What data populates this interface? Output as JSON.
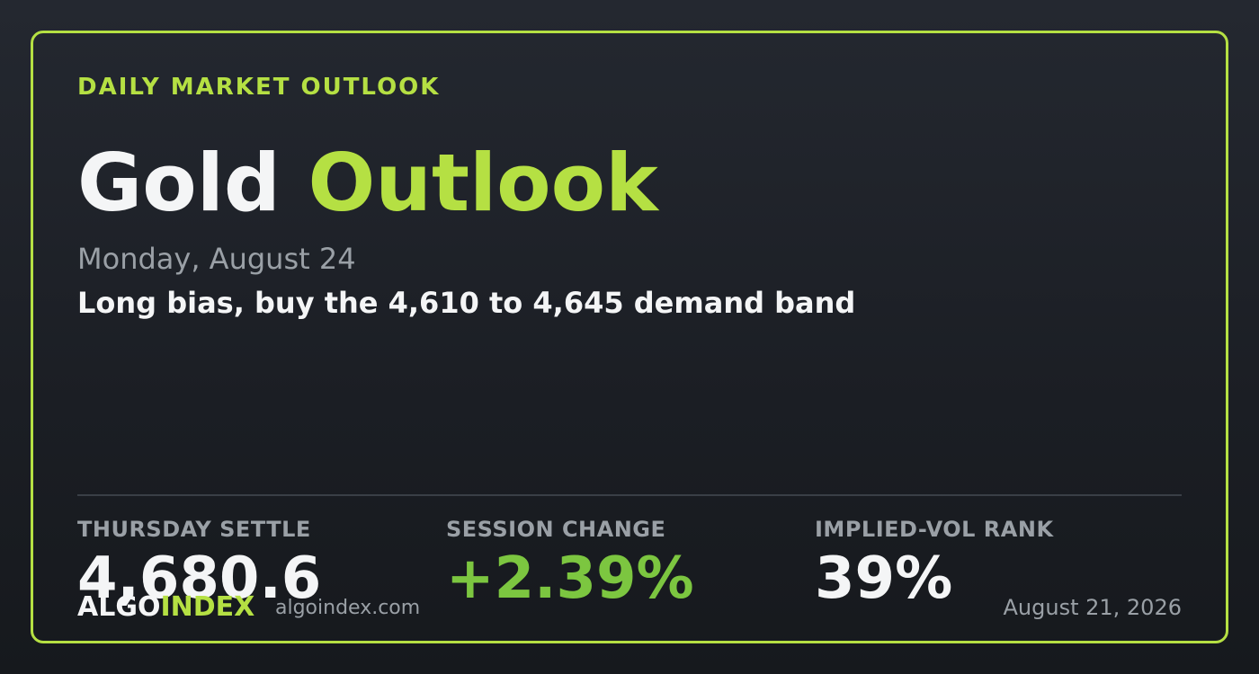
{
  "header": {
    "kicker": "DAILY MARKET OUTLOOK",
    "title_main": "Gold",
    "title_accent": "Outlook",
    "date": "Monday, August 24",
    "headline": "Long bias, buy the 4,610 to 4,645 demand band"
  },
  "stats": [
    {
      "label": "THURSDAY SETTLE",
      "value": "4,680.6"
    },
    {
      "label": "SESSION CHANGE",
      "value": "+2.39%"
    },
    {
      "label": "IMPLIED-VOL RANK",
      "value": "39%"
    }
  ],
  "footer": {
    "brand_main": "ALGO",
    "brand_accent": "INDEX",
    "site": "algoindex.com",
    "date": "August 21, 2026"
  }
}
